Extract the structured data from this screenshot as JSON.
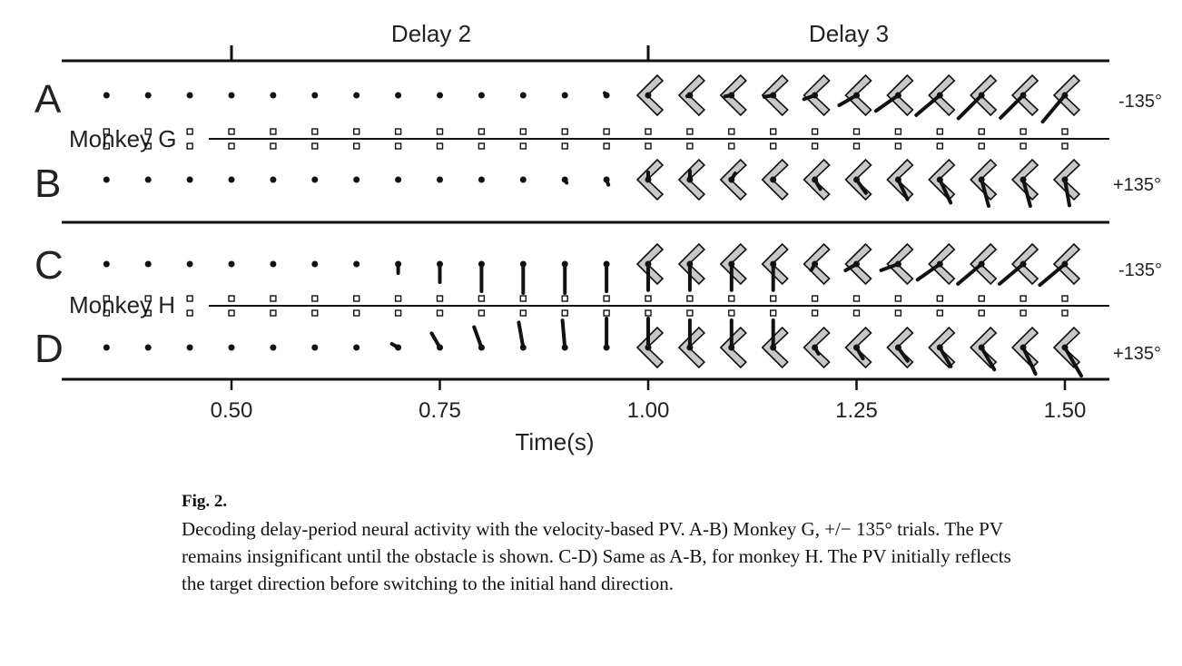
{
  "figure": {
    "delay_labels": [
      "Delay 2",
      "Delay 3"
    ],
    "panels": [
      {
        "letter": "A",
        "angle": "-135°"
      },
      {
        "letter": "B",
        "angle": "+135°"
      },
      {
        "letter": "C",
        "angle": "-135°"
      },
      {
        "letter": "D",
        "angle": "+135°"
      }
    ],
    "monkeys": [
      "Monkey G",
      "Monkey H"
    ],
    "x_axis": {
      "label": "Time(s)",
      "ticks": [
        "0.50",
        "0.75",
        "1.00",
        "1.25",
        "1.50"
      ],
      "tick_values": [
        0.5,
        0.75,
        1.0,
        1.25,
        1.5
      ],
      "range": [
        0.3,
        1.55
      ]
    },
    "time_points": [
      0.35,
      0.4,
      0.45,
      0.5,
      0.55,
      0.6,
      0.65,
      0.7,
      0.75,
      0.8,
      0.85,
      0.9,
      0.95,
      1.0,
      1.05,
      1.1,
      1.15,
      1.2,
      1.25,
      1.3,
      1.35,
      1.4,
      1.45,
      1.5
    ],
    "obstacle_onset_s": 1.0,
    "pv_vectors": {
      "A": [
        [
          0,
          0.05
        ],
        [
          0,
          0.05
        ],
        [
          0,
          0.05
        ],
        [
          0,
          0.05
        ],
        [
          0,
          0.05
        ],
        [
          0,
          0.05
        ],
        [
          0,
          0.06
        ],
        [
          0,
          0.06
        ],
        [
          -30,
          0.07
        ],
        [
          0,
          0.06
        ],
        [
          10,
          0.05
        ],
        [
          -30,
          0.06
        ],
        [
          -40,
          0.08
        ],
        [
          0,
          0.05
        ],
        [
          -110,
          0.08
        ],
        [
          -100,
          0.18
        ],
        [
          -100,
          0.25
        ],
        [
          -110,
          0.32
        ],
        [
          -120,
          0.55
        ],
        [
          -125,
          0.75
        ],
        [
          -130,
          0.85
        ],
        [
          -135,
          0.9
        ],
        [
          -135,
          0.88
        ],
        [
          -140,
          0.95
        ]
      ],
      "B": [
        [
          0,
          0.05
        ],
        [
          0,
          0.05
        ],
        [
          0,
          0.05
        ],
        [
          0,
          0.05
        ],
        [
          0,
          0.05
        ],
        [
          0,
          0.05
        ],
        [
          0,
          0.05
        ],
        [
          0,
          0.05
        ],
        [
          0,
          0.05
        ],
        [
          0,
          0.05
        ],
        [
          0,
          0.05
        ],
        [
          150,
          0.1
        ],
        [
          160,
          0.15
        ],
        [
          0,
          0.2
        ],
        [
          0,
          0.25
        ],
        [
          30,
          0.2
        ],
        [
          0,
          0.05
        ],
        [
          150,
          0.3
        ],
        [
          145,
          0.45
        ],
        [
          155,
          0.6
        ],
        [
          155,
          0.7
        ],
        [
          165,
          0.75
        ],
        [
          165,
          0.75
        ],
        [
          170,
          0.72
        ]
      ]
    },
    "pv_vectors_h": {
      "C": [
        [
          0,
          0.05
        ],
        [
          0,
          0.05
        ],
        [
          0,
          0.05
        ],
        [
          0,
          0.05
        ],
        [
          0,
          0.05
        ],
        [
          0,
          0.05
        ],
        [
          0,
          0.06
        ],
        [
          180,
          0.25
        ],
        [
          180,
          0.5
        ],
        [
          180,
          0.75
        ],
        [
          180,
          0.8
        ],
        [
          180,
          0.8
        ],
        [
          180,
          0.75
        ],
        [
          180,
          0.72
        ],
        [
          180,
          0.72
        ],
        [
          180,
          0.72
        ],
        [
          180,
          0.72
        ],
        [
          -150,
          0.2
        ],
        [
          -120,
          0.35
        ],
        [
          -110,
          0.5
        ],
        [
          -125,
          0.75
        ],
        [
          -130,
          0.85
        ],
        [
          -130,
          0.85
        ],
        [
          -130,
          0.9
        ]
      ],
      "D": [
        [
          0,
          0.05
        ],
        [
          0,
          0.05
        ],
        [
          0,
          0.05
        ],
        [
          0,
          0.05
        ],
        [
          0,
          0.05
        ],
        [
          0,
          0.05
        ],
        [
          0,
          0.05
        ],
        [
          -60,
          0.2
        ],
        [
          -30,
          0.45
        ],
        [
          -20,
          0.6
        ],
        [
          -10,
          0.7
        ],
        [
          -5,
          0.75
        ],
        [
          0,
          0.8
        ],
        [
          0,
          0.8
        ],
        [
          0,
          0.75
        ],
        [
          0,
          0.75
        ],
        [
          0,
          0.75
        ],
        [
          150,
          0.2
        ],
        [
          150,
          0.35
        ],
        [
          145,
          0.45
        ],
        [
          150,
          0.6
        ],
        [
          150,
          0.7
        ],
        [
          155,
          0.8
        ],
        [
          150,
          0.9
        ]
      ]
    }
  },
  "caption": {
    "title": "Fig. 2.",
    "text": "Decoding delay-period neural activity with the velocity-based PV. A-B) Monkey G, +/− 135° trials. The PV remains insignificant until the obstacle is shown. C-D) Same as A-B, for monkey H. The PV initially reflects the target direction before switching to the initial hand direction."
  }
}
